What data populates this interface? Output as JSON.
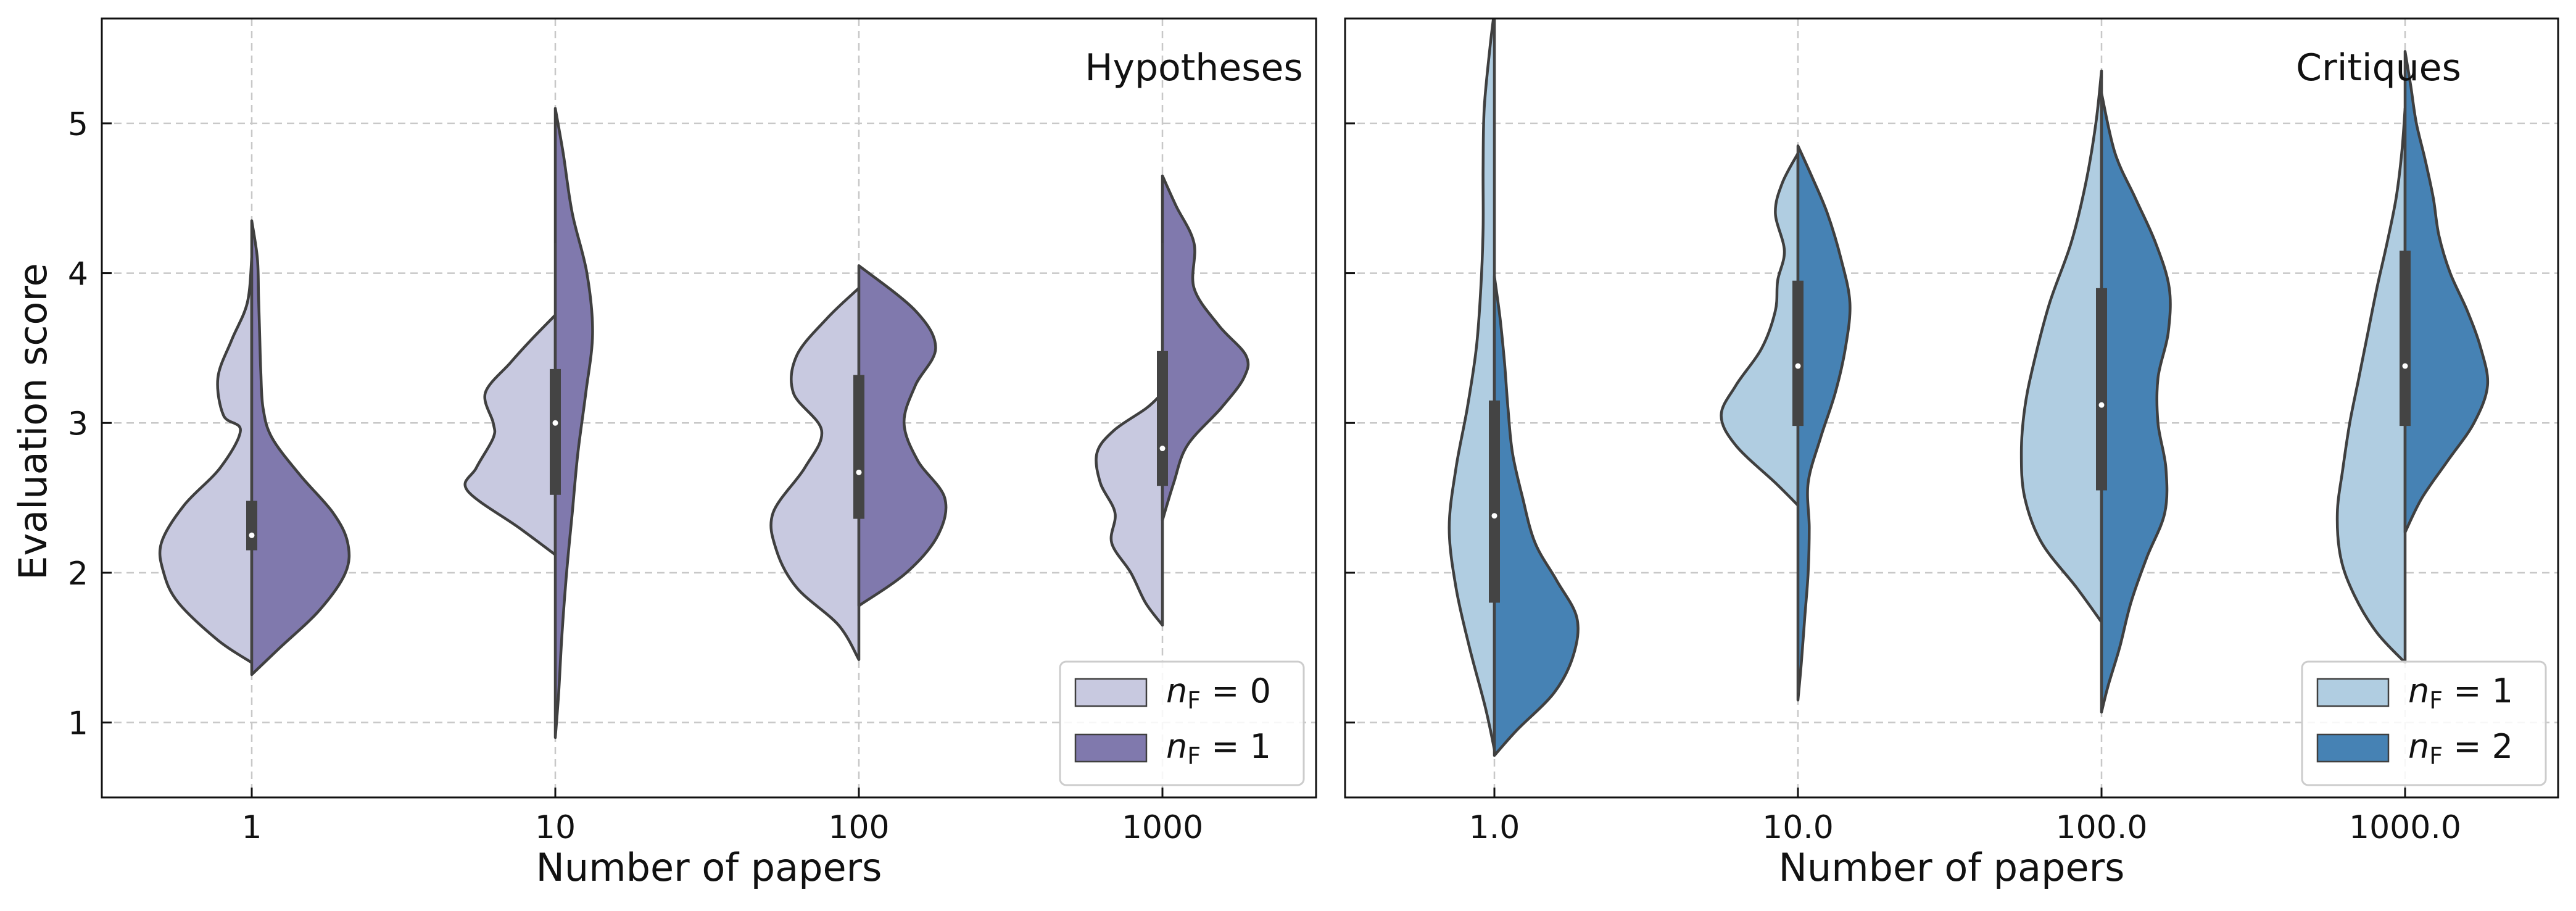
{
  "figure": {
    "ylabel": "Evaluation score",
    "xlabel": "Number of papers"
  },
  "chart_data": [
    {
      "type": "violin",
      "split": true,
      "title": "Hypotheses",
      "xlabel": "Number of papers",
      "ylabel": "Evaluation score",
      "ylim": [
        0.5,
        5.7
      ],
      "yticks": [
        1,
        2,
        3,
        4,
        5
      ],
      "grid": true,
      "legend_position": "bottom-right",
      "categories": [
        "1",
        "10",
        "100",
        "1000"
      ],
      "series": [
        {
          "name": "n_F = 0",
          "legend_base": "n",
          "legend_sub": "F",
          "legend_rest": " = 0",
          "color": "#c8c9e0",
          "side": "left",
          "violins": [
            {
              "y": [
                1.4,
                1.55,
                1.8,
                2.0,
                2.2,
                2.45,
                2.7,
                2.95,
                3.05,
                3.3,
                3.55,
                3.8,
                4.1
              ],
              "w": [
                0.0,
                0.3,
                0.65,
                0.78,
                0.8,
                0.6,
                0.28,
                0.1,
                0.25,
                0.3,
                0.18,
                0.04,
                0.0
              ]
            },
            {
              "y": [
                2.12,
                2.3,
                2.55,
                2.7,
                2.9,
                3.0,
                3.2,
                3.4,
                3.55,
                3.72
              ],
              "w": [
                0.0,
                0.32,
                0.78,
                0.7,
                0.55,
                0.55,
                0.62,
                0.4,
                0.22,
                0.0
              ]
            },
            {
              "y": [
                1.42,
                1.65,
                1.9,
                2.15,
                2.4,
                2.7,
                2.95,
                3.2,
                3.45,
                3.7,
                3.9
              ],
              "w": [
                0.0,
                0.18,
                0.55,
                0.73,
                0.76,
                0.48,
                0.33,
                0.58,
                0.55,
                0.28,
                0.0
              ]
            },
            {
              "y": [
                1.65,
                1.8,
                2.0,
                2.2,
                2.4,
                2.6,
                2.8,
                2.95,
                3.1,
                3.2
              ],
              "w": [
                0.0,
                0.15,
                0.28,
                0.45,
                0.42,
                0.55,
                0.58,
                0.43,
                0.14,
                0.0
              ]
            }
          ]
        },
        {
          "name": "n_F = 1",
          "legend_base": "n",
          "legend_sub": "F",
          "legend_rest": " = 1",
          "color": "#8079ad",
          "side": "right",
          "violins": [
            {
              "y": [
                1.32,
                1.5,
                1.75,
                2.0,
                2.2,
                2.4,
                2.65,
                2.9,
                3.1,
                3.35,
                3.6,
                3.85,
                4.1,
                4.35
              ],
              "w": [
                0.0,
                0.25,
                0.6,
                0.83,
                0.85,
                0.72,
                0.43,
                0.18,
                0.1,
                0.08,
                0.07,
                0.06,
                0.05,
                0.0
              ]
            },
            {
              "y": [
                0.9,
                1.2,
                1.6,
                2.0,
                2.4,
                2.8,
                3.2,
                3.6,
                4.0,
                4.4,
                4.8,
                5.1
              ],
              "w": [
                0.0,
                0.03,
                0.06,
                0.1,
                0.15,
                0.2,
                0.27,
                0.33,
                0.28,
                0.15,
                0.07,
                0.0
              ]
            },
            {
              "y": [
                1.78,
                2.0,
                2.25,
                2.5,
                2.75,
                3.0,
                3.25,
                3.5,
                3.75,
                4.05
              ],
              "w": [
                0.0,
                0.42,
                0.7,
                0.76,
                0.52,
                0.4,
                0.5,
                0.68,
                0.5,
                0.0
              ]
            },
            {
              "y": [
                2.35,
                2.6,
                2.85,
                3.1,
                3.3,
                3.45,
                3.65,
                3.9,
                4.2,
                4.45,
                4.65
              ],
              "w": [
                0.0,
                0.1,
                0.22,
                0.52,
                0.72,
                0.74,
                0.5,
                0.28,
                0.28,
                0.12,
                0.0
              ]
            }
          ]
        }
      ],
      "boxes": [
        {
          "q1": 2.15,
          "median": 2.25,
          "q3": 2.48,
          "whisker_low": 1.4,
          "whisker_high": 4.1
        },
        {
          "q1": 2.52,
          "median": 3.0,
          "q3": 3.36,
          "whisker_low": 0.9,
          "whisker_high": 4.2
        },
        {
          "q1": 2.36,
          "median": 2.67,
          "q3": 3.32,
          "whisker_low": 1.42,
          "whisker_high": 4.05
        },
        {
          "q1": 2.58,
          "median": 2.83,
          "q3": 3.48,
          "whisker_low": 1.65,
          "whisker_high": 4.2
        }
      ]
    },
    {
      "type": "violin",
      "split": true,
      "title": "Critiques",
      "xlabel": "Number of papers",
      "ylabel": "",
      "ylim": [
        0.5,
        5.7
      ],
      "yticks": [
        1,
        2,
        3,
        4,
        5
      ],
      "grid": true,
      "legend_position": "bottom-right",
      "categories": [
        "1.0",
        "10.0",
        "100.0",
        "1000.0"
      ],
      "series": [
        {
          "name": "n_F = 1",
          "legend_base": "n",
          "legend_sub": "F",
          "legend_rest": " = 1",
          "color": "#b0cde1",
          "side": "left",
          "violins": [
            {
              "y": [
                0.82,
                1.1,
                1.5,
                1.9,
                2.3,
                2.7,
                3.1,
                3.5,
                3.9,
                4.3,
                4.7,
                5.1,
                5.5,
                5.75
              ],
              "w": [
                0.0,
                0.08,
                0.22,
                0.34,
                0.4,
                0.34,
                0.24,
                0.16,
                0.12,
                0.1,
                0.1,
                0.09,
                0.04,
                0.0
              ]
            },
            {
              "y": [
                2.45,
                2.6,
                2.85,
                3.05,
                3.25,
                3.5,
                3.75,
                3.95,
                4.15,
                4.4,
                4.6,
                4.8
              ],
              "w": [
                0.0,
                0.2,
                0.55,
                0.68,
                0.55,
                0.32,
                0.2,
                0.18,
                0.12,
                0.2,
                0.14,
                0.0
              ]
            },
            {
              "y": [
                1.67,
                1.9,
                2.2,
                2.5,
                2.8,
                3.1,
                3.4,
                3.8,
                4.2,
                4.6,
                5.0,
                5.35
              ],
              "w": [
                0.0,
                0.22,
                0.53,
                0.68,
                0.71,
                0.68,
                0.6,
                0.46,
                0.27,
                0.14,
                0.05,
                0.0
              ]
            },
            {
              "y": [
                1.4,
                1.6,
                1.85,
                2.1,
                2.4,
                2.7,
                3.0,
                3.3,
                3.6,
                3.9,
                4.2,
                4.5,
                4.8,
                5.1
              ],
              "w": [
                0.0,
                0.25,
                0.45,
                0.57,
                0.6,
                0.55,
                0.49,
                0.41,
                0.33,
                0.25,
                0.16,
                0.08,
                0.03,
                0.0
              ]
            }
          ]
        },
        {
          "name": "n_F = 2",
          "legend_base": "n",
          "legend_sub": "F",
          "legend_rest": " = 2",
          "color": "#4682b4",
          "side": "right",
          "violins": [
            {
              "y": [
                0.78,
                0.95,
                1.2,
                1.45,
                1.7,
                1.95,
                2.2,
                2.5,
                2.8,
                3.1,
                3.4,
                3.7,
                3.98
              ],
              "w": [
                0.0,
                0.2,
                0.53,
                0.7,
                0.73,
                0.55,
                0.36,
                0.25,
                0.16,
                0.12,
                0.09,
                0.05,
                0.0
              ]
            },
            {
              "y": [
                1.15,
                1.4,
                1.7,
                2.0,
                2.3,
                2.6,
                2.9,
                3.2,
                3.5,
                3.8,
                4.1,
                4.4,
                4.65,
                4.85
              ],
              "w": [
                0.0,
                0.03,
                0.06,
                0.09,
                0.1,
                0.09,
                0.2,
                0.33,
                0.42,
                0.46,
                0.38,
                0.26,
                0.12,
                0.0
              ]
            },
            {
              "y": [
                1.07,
                1.25,
                1.5,
                1.8,
                2.1,
                2.4,
                2.7,
                3.0,
                3.3,
                3.6,
                3.9,
                4.2,
                4.5,
                4.8,
                5.2
              ],
              "w": [
                0.0,
                0.06,
                0.16,
                0.26,
                0.4,
                0.56,
                0.57,
                0.5,
                0.5,
                0.59,
                0.6,
                0.48,
                0.3,
                0.12,
                0.0
              ]
            },
            {
              "y": [
                2.27,
                2.5,
                2.75,
                3.0,
                3.25,
                3.5,
                3.75,
                4.0,
                4.25,
                4.5,
                4.75,
                5.0,
                5.25,
                5.48
              ],
              "w": [
                0.0,
                0.15,
                0.38,
                0.61,
                0.73,
                0.67,
                0.55,
                0.4,
                0.3,
                0.25,
                0.18,
                0.1,
                0.05,
                0.0
              ]
            }
          ]
        }
      ],
      "boxes": [
        {
          "q1": 1.8,
          "median": 2.38,
          "q3": 3.15,
          "whisker_low": 0.8,
          "whisker_high": 5.7
        },
        {
          "q1": 2.98,
          "median": 3.38,
          "q3": 3.95,
          "whisker_low": 1.2,
          "whisker_high": 4.85
        },
        {
          "q1": 2.55,
          "median": 3.12,
          "q3": 3.9,
          "whisker_low": 1.1,
          "whisker_high": 5.3
        },
        {
          "q1": 2.98,
          "median": 3.38,
          "q3": 4.15,
          "whisker_low": 1.45,
          "whisker_high": 5.4
        }
      ]
    }
  ]
}
